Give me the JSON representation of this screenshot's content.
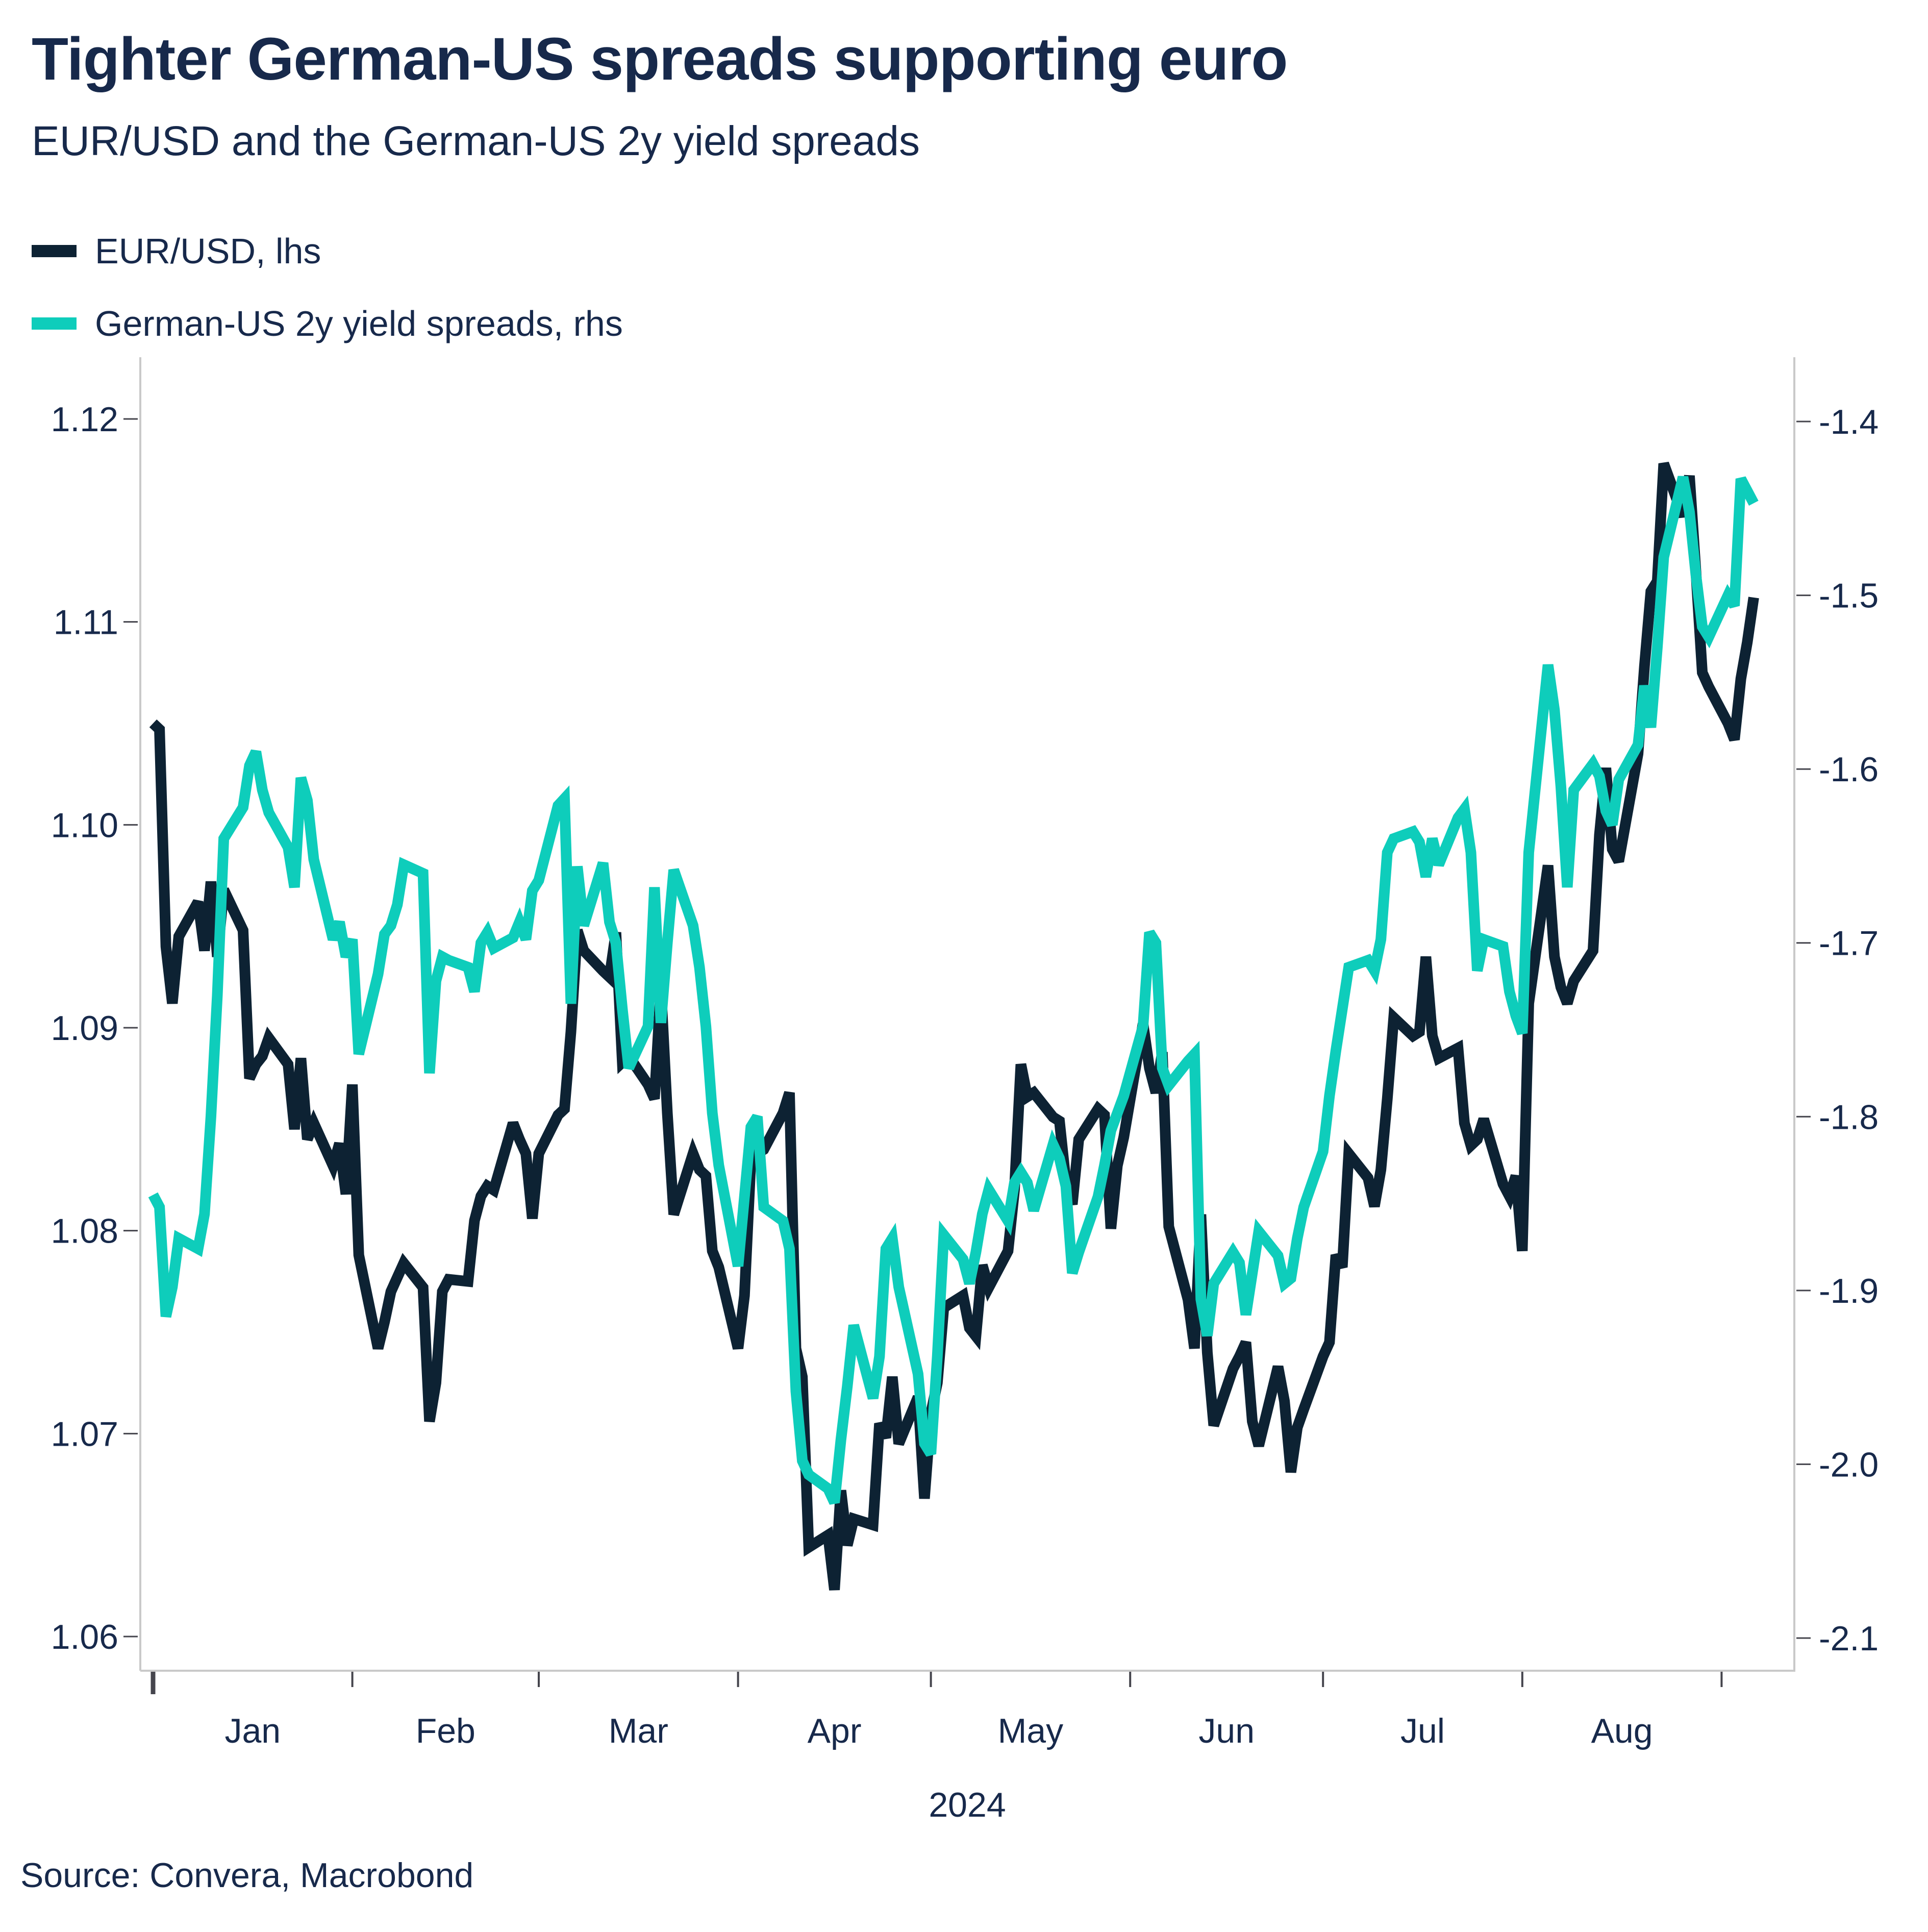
{
  "header": {
    "title": "Tighter German-US spreads supporting euro",
    "subtitle": "EUR/USD and the German-US 2y yield spreads"
  },
  "legend": [
    {
      "label": "EUR/USD, lhs",
      "color": "#0d2233"
    },
    {
      "label": "German-US 2y yield spreads, rhs",
      "color": "#0ecdbb"
    }
  ],
  "source": "Source: Convera, Macrobond",
  "colors": {
    "navy_line": "#0d2233",
    "teal_line": "#0ecdbb",
    "text": "#17294b",
    "axis_line": "#c9c9c9",
    "tick_mark": "#45454d"
  },
  "chart_data": {
    "type": "line",
    "title": "Tighter German-US spreads supporting euro",
    "subtitle": "EUR/USD and the German-US 2y yield spreads",
    "x_axis": {
      "year_label": "2024",
      "month_labels": [
        "Jan",
        "Feb",
        "Mar",
        "Apr",
        "May",
        "Jun",
        "Jul",
        "Aug"
      ],
      "month_start_days": [
        0,
        31,
        60,
        91,
        121,
        152,
        182,
        213,
        244
      ],
      "grid": false
    },
    "left_axis": {
      "ticks": [
        "1.12",
        "1.11",
        "1.10",
        "1.09",
        "1.08",
        "1.07",
        "1.06"
      ],
      "ylim": [
        1.06,
        1.12
      ]
    },
    "right_axis": {
      "ticks": [
        "-1.4",
        "-1.5",
        "-1.6",
        "-1.7",
        "-1.8",
        "-1.9",
        "-2.0",
        "-2.1"
      ],
      "ylim": [
        -2.1,
        -1.4
      ]
    },
    "dates": [
      "01-01",
      "01-02",
      "01-03",
      "01-04",
      "01-05",
      "01-08",
      "01-09",
      "01-10",
      "01-11",
      "01-12",
      "01-15",
      "01-16",
      "01-17",
      "01-18",
      "01-19",
      "01-22",
      "01-23",
      "01-24",
      "01-25",
      "01-26",
      "01-29",
      "01-30",
      "01-31",
      "02-01",
      "02-02",
      "02-05",
      "02-06",
      "02-07",
      "02-08",
      "02-09",
      "02-12",
      "02-13",
      "02-14",
      "02-15",
      "02-16",
      "02-19",
      "02-20",
      "02-21",
      "02-22",
      "02-23",
      "02-26",
      "02-27",
      "02-28",
      "02-29",
      "03-01",
      "03-04",
      "03-05",
      "03-06",
      "03-07",
      "03-08",
      "03-11",
      "03-12",
      "03-13",
      "03-14",
      "03-15",
      "03-18",
      "03-19",
      "03-20",
      "03-21",
      "03-22",
      "03-25",
      "03-26",
      "03-27",
      "03-28",
      "03-29",
      "04-01",
      "04-02",
      "04-03",
      "04-04",
      "04-05",
      "04-08",
      "04-09",
      "04-10",
      "04-11",
      "04-12",
      "04-15",
      "04-16",
      "04-17",
      "04-18",
      "04-19",
      "04-22",
      "04-23",
      "04-24",
      "04-25",
      "04-26",
      "04-29",
      "04-30",
      "05-01",
      "05-02",
      "05-03",
      "05-06",
      "05-07",
      "05-08",
      "05-09",
      "05-10",
      "05-13",
      "05-14",
      "05-15",
      "05-16",
      "05-17",
      "05-20",
      "05-21",
      "05-22",
      "05-23",
      "05-24",
      "05-27",
      "05-28",
      "05-29",
      "05-30",
      "05-31",
      "06-03",
      "06-04",
      "06-05",
      "06-06",
      "06-07",
      "06-10",
      "06-11",
      "06-12",
      "06-13",
      "06-14",
      "06-17",
      "06-18",
      "06-19",
      "06-20",
      "06-21",
      "06-24",
      "06-25",
      "06-26",
      "06-27",
      "06-28",
      "07-01",
      "07-02",
      "07-03",
      "07-04",
      "07-05",
      "07-08",
      "07-09",
      "07-10",
      "07-11",
      "07-12",
      "07-15",
      "07-16",
      "07-17",
      "07-18",
      "07-19",
      "07-22",
      "07-23",
      "07-24",
      "07-25",
      "07-26",
      "07-29",
      "07-30",
      "07-31",
      "08-01",
      "08-02",
      "08-05",
      "08-06",
      "08-07",
      "08-08",
      "08-09",
      "08-12",
      "08-13",
      "08-14",
      "08-15",
      "08-16",
      "08-19",
      "08-20",
      "08-21",
      "08-22",
      "08-23",
      "08-26",
      "08-27",
      "08-28",
      "08-29",
      "08-30",
      "09-02",
      "09-03",
      "09-04",
      "09-05",
      "09-06"
    ],
    "series": [
      {
        "name": "EUR/USD, lhs",
        "axis": "left",
        "color": "#0d2233",
        "values": [
          1.105,
          1.1047,
          1.094,
          1.0912,
          1.0945,
          1.0962,
          1.0938,
          1.0972,
          1.0935,
          1.0968,
          1.0948,
          1.0875,
          1.0882,
          1.0886,
          1.0895,
          1.0882,
          1.085,
          1.0885,
          1.0845,
          1.0853,
          1.0832,
          1.0843,
          1.0818,
          1.0872,
          1.0788,
          1.0742,
          1.0755,
          1.077,
          1.0777,
          1.0784,
          1.0772,
          1.0706,
          1.0725,
          1.077,
          1.0776,
          1.0775,
          1.0805,
          1.0817,
          1.0822,
          1.082,
          1.0853,
          1.0845,
          1.0838,
          1.0806,
          1.0838,
          1.0857,
          1.086,
          1.0898,
          1.0948,
          1.0938,
          1.0928,
          1.0925,
          1.0947,
          1.0883,
          1.0886,
          1.0872,
          1.0865,
          1.092,
          1.0858,
          1.0808,
          1.0838,
          1.083,
          1.0827,
          1.079,
          1.0782,
          1.0742,
          1.0768,
          1.0835,
          1.0838,
          1.084,
          1.0858,
          1.0868,
          1.0742,
          1.0728,
          1.0644,
          1.065,
          1.0623,
          1.0672,
          1.0645,
          1.0658,
          1.0655,
          1.0705,
          1.0698,
          1.0728,
          1.0695,
          1.0718,
          1.0668,
          1.071,
          1.0725,
          1.0762,
          1.0768,
          1.0752,
          1.0748,
          1.0783,
          1.0772,
          1.079,
          1.082,
          1.0882,
          1.0866,
          1.0868,
          1.0856,
          1.0854,
          1.0824,
          1.0813,
          1.0845,
          1.086,
          1.0857,
          1.0801,
          1.0832,
          1.0846,
          1.0902,
          1.088,
          1.0868,
          1.0888,
          1.0802,
          1.0766,
          1.0742,
          1.0808,
          1.074,
          1.0704,
          1.0732,
          1.0738,
          1.0745,
          1.0706,
          1.0694,
          1.0733,
          1.0716,
          1.0681,
          1.0703,
          1.0712,
          1.0738,
          1.0745,
          1.0788,
          1.0782,
          1.0838,
          1.0826,
          1.0812,
          1.083,
          1.0865,
          1.0905,
          1.0896,
          1.0898,
          1.0935,
          1.0896,
          1.0885,
          1.089,
          1.0853,
          1.0842,
          1.0845,
          1.0855,
          1.0823,
          1.0817,
          1.0827,
          1.079,
          1.0912,
          1.098,
          1.0935,
          1.092,
          1.0912,
          1.0923,
          1.0938,
          1.0995,
          1.1028,
          1.0988,
          1.0982,
          1.1035,
          1.1078,
          1.1115,
          1.112,
          1.1178,
          1.1152,
          1.1172,
          1.1125,
          1.1075,
          1.1068,
          1.105,
          1.1042,
          1.1072,
          1.109,
          1.1112
        ]
      },
      {
        "name": "German-US 2y yield spreads, rhs",
        "axis": "right",
        "color": "#0ecdbb",
        "values": [
          -1.845,
          -1.852,
          -1.915,
          -1.898,
          -1.87,
          -1.876,
          -1.856,
          -1.8,
          -1.73,
          -1.64,
          -1.622,
          -1.598,
          -1.59,
          -1.612,
          -1.625,
          -1.645,
          -1.668,
          -1.605,
          -1.618,
          -1.652,
          -1.698,
          -1.688,
          -1.708,
          -1.698,
          -1.764,
          -1.718,
          -1.695,
          -1.69,
          -1.678,
          -1.655,
          -1.66,
          -1.775,
          -1.722,
          -1.708,
          -1.71,
          -1.714,
          -1.728,
          -1.7,
          -1.694,
          -1.703,
          -1.697,
          -1.688,
          -1.698,
          -1.67,
          -1.664,
          -1.621,
          -1.617,
          -1.735,
          -1.656,
          -1.69,
          -1.654,
          -1.688,
          -1.7,
          -1.738,
          -1.772,
          -1.748,
          -1.668,
          -1.746,
          -1.7,
          -1.658,
          -1.69,
          -1.714,
          -1.748,
          -1.798,
          -1.828,
          -1.886,
          -1.846,
          -1.806,
          -1.8,
          -1.852,
          -1.86,
          -1.876,
          -1.958,
          -1.998,
          -2.006,
          -2.014,
          -2.022,
          -1.986,
          -1.955,
          -1.92,
          -1.962,
          -1.938,
          -1.876,
          -1.87,
          -1.898,
          -1.948,
          -1.988,
          -1.994,
          -1.938,
          -1.868,
          -1.882,
          -1.896,
          -1.878,
          -1.856,
          -1.842,
          -1.86,
          -1.838,
          -1.832,
          -1.838,
          -1.854,
          -1.816,
          -1.824,
          -1.84,
          -1.89,
          -1.878,
          -1.846,
          -1.828,
          -1.808,
          -1.798,
          -1.788,
          -1.748,
          -1.694,
          -1.7,
          -1.772,
          -1.782,
          -1.768,
          -1.764,
          -1.905,
          -1.926,
          -1.896,
          -1.878,
          -1.884,
          -1.914,
          -1.89,
          -1.866,
          -1.88,
          -1.896,
          -1.893,
          -1.87,
          -1.852,
          -1.82,
          -1.788,
          -1.762,
          -1.738,
          -1.714,
          -1.71,
          -1.716,
          -1.698,
          -1.648,
          -1.64,
          -1.636,
          -1.642,
          -1.662,
          -1.64,
          -1.655,
          -1.628,
          -1.623,
          -1.648,
          -1.716,
          -1.698,
          -1.702,
          -1.728,
          -1.742,
          -1.752,
          -1.648,
          -1.54,
          -1.566,
          -1.61,
          -1.668,
          -1.612,
          -1.597,
          -1.604,
          -1.624,
          -1.632,
          -1.606,
          -1.586,
          -1.552,
          -1.576,
          -1.53,
          -1.478,
          -1.432,
          -1.452,
          -1.488,
          -1.518,
          -1.524,
          -1.5,
          -1.506,
          -1.433,
          -1.44,
          -1.447
        ]
      }
    ]
  }
}
